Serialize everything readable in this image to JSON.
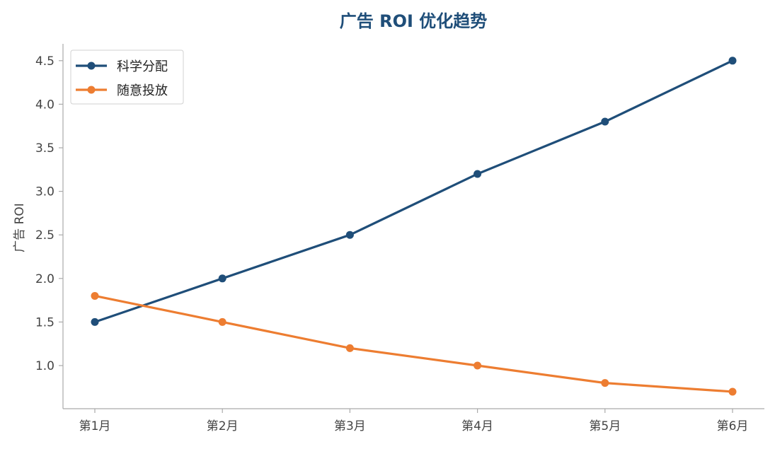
{
  "chart_data": {
    "type": "line",
    "title": "广告 ROI 优化趋势",
    "xlabel": "",
    "ylabel": "广告 ROI",
    "categories": [
      "第1月",
      "第2月",
      "第3月",
      "第4月",
      "第5月",
      "第6月"
    ],
    "ylim": [
      0.5,
      4.7
    ],
    "yticks": [
      "1.0",
      "1.5",
      "2.0",
      "2.5",
      "3.0",
      "3.5",
      "4.0",
      "4.5"
    ],
    "grid": false,
    "legend_position": "top-left",
    "series": [
      {
        "name": "科学分配",
        "color": "#1f4e79",
        "values": [
          1.5,
          2.0,
          2.5,
          3.2,
          3.8,
          4.5
        ]
      },
      {
        "name": "随意投放",
        "color": "#ed7d31",
        "values": [
          1.8,
          1.5,
          1.2,
          1.0,
          0.8,
          0.7
        ]
      }
    ]
  },
  "colors": {
    "title": "#1f4e79",
    "axis": "#aaaaaa",
    "tick_text": "#444444"
  }
}
